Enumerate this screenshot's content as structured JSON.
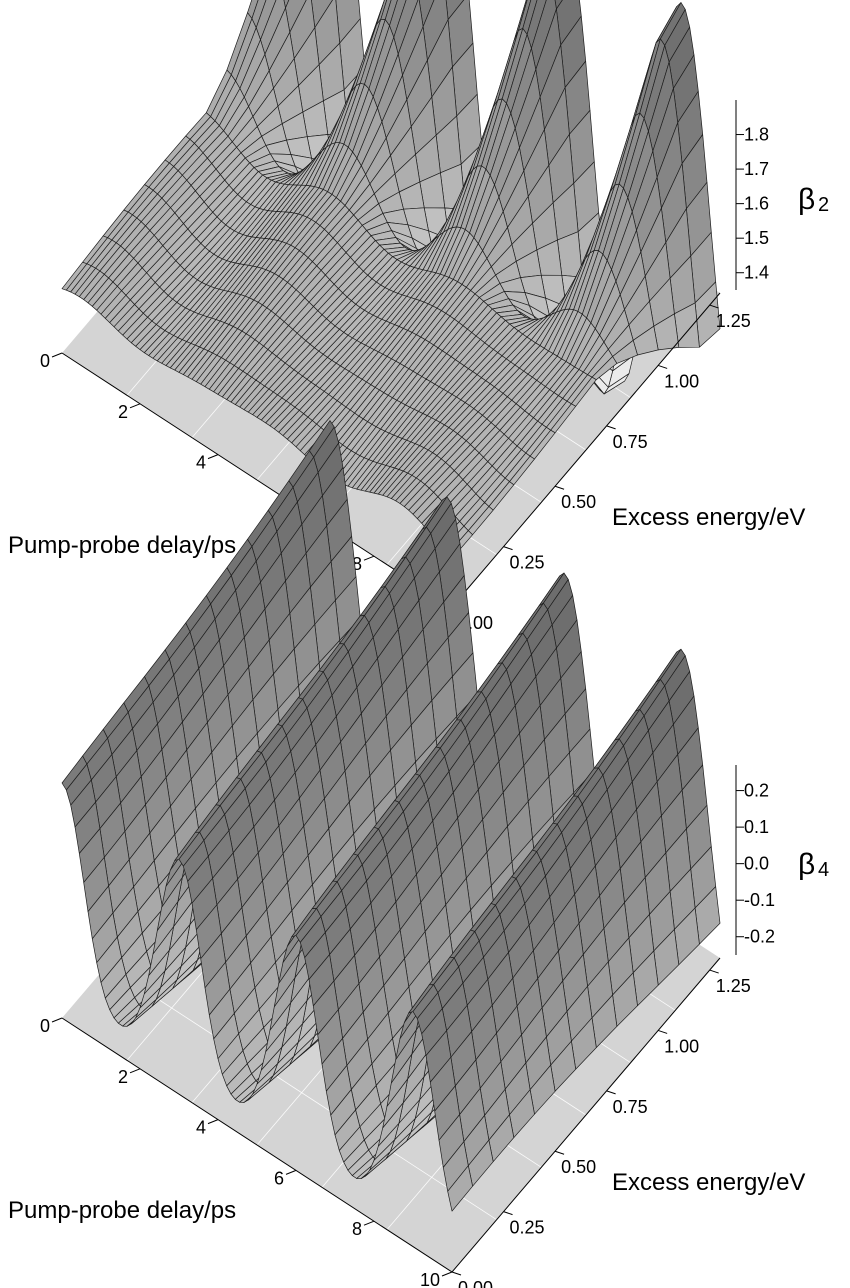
{
  "chart_data": [
    {
      "type": "surface",
      "x_axis": {
        "label": "Pump-probe delay/ps",
        "ticks": [
          "0",
          "2",
          "4",
          "6",
          "8",
          "10"
        ],
        "range": [
          0,
          10
        ]
      },
      "y_axis": {
        "label": "Excess energy/eV",
        "ticks": [
          "0.00",
          "0.25",
          "0.50",
          "0.75",
          "1.00",
          "1.25"
        ],
        "range": [
          0,
          1.3
        ]
      },
      "z_axis": {
        "symbol": "β",
        "subscript": "2",
        "ticks": [
          "1.4",
          "1.5",
          "1.6",
          "1.7",
          "1.8"
        ],
        "tick_values": [
          1.4,
          1.5,
          1.6,
          1.7,
          1.8
        ],
        "range": [
          1.35,
          1.9
        ]
      },
      "surface_model": {
        "baseline": 1.46,
        "oscillation_period_ps": 3.0,
        "peak_delays_ps": [
          0,
          3,
          6,
          9
        ],
        "amplitude_min": 0.01,
        "amplitude_max": 0.38,
        "energy_onset_eV": 0.72
      }
    },
    {
      "type": "surface",
      "x_axis": {
        "label": "Pump-probe delay/ps",
        "ticks": [
          "0",
          "2",
          "4",
          "6",
          "8",
          "10"
        ],
        "range": [
          0,
          10
        ]
      },
      "y_axis": {
        "label": "Excess energy/eV",
        "ticks": [
          "0.00",
          "0.25",
          "0.50",
          "0.75",
          "1.00",
          "1.25"
        ],
        "range": [
          0,
          1.3
        ]
      },
      "z_axis": {
        "symbol": "β",
        "subscript": "4",
        "ticks": [
          "0.2",
          "0.1",
          "0.0",
          "-0.1",
          "-0.2"
        ],
        "tick_values": [
          0.2,
          0.1,
          0.0,
          -0.1,
          -0.2
        ],
        "range": [
          -0.25,
          0.27
        ]
      },
      "surface_model": {
        "baseline": -0.04,
        "oscillation_period_ps": 3.0,
        "peak_delays_ps": [
          0,
          3,
          6,
          9
        ],
        "amplitude_low_energy": 0.18,
        "amplitude_high_energy": 0.26
      }
    }
  ]
}
